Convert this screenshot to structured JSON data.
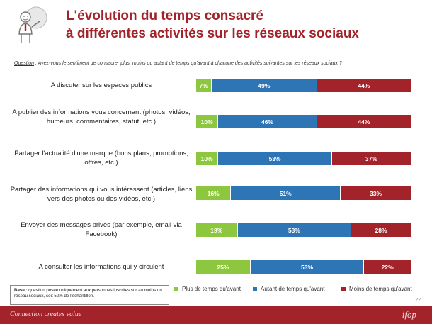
{
  "header": {
    "title_line1": "L'évolution du temps consacré",
    "title_line2": "à différentes activités sur les réseaux sociaux"
  },
  "question": {
    "label": "Question",
    "text": " : Avez-vous le sentiment de consacrer plus, moins ou autant de temps qu'avant à chacune des activités suivantes sur les réseaux sociaux ?"
  },
  "base_note": {
    "label": "Base :",
    "text": " question posée uniquement aux personnes inscrites sur au moins un réseau sociaux, soit 50% de l'échantillon."
  },
  "page_number": "22",
  "footer": {
    "text": "Connection creates value",
    "logo": "ifop"
  },
  "colors": {
    "plus": "#8dc63f",
    "autant": "#2e75b6",
    "moins": "#a3232b",
    "brand": "#a3232b"
  },
  "chart_data": {
    "type": "bar",
    "orientation": "horizontal",
    "stacked": true,
    "categories": [
      "A discuter sur les espaces publics",
      "A publier des informations vous concernant (photos, vidéos, humeurs, commentaires, statut, etc.)",
      "Partager l'actualité d'une marque (bons plans, promotions, offres, etc.)",
      "Partager des informations qui vous intéressent (articles, liens vers des photos ou des vidéos, etc.)",
      "Envoyer des messages privés (par exemple, email via Facebook)",
      "A consulter les informations qui y circulent"
    ],
    "series": [
      {
        "name": "Plus de temps qu'avant",
        "values": [
          7,
          10,
          10,
          16,
          19,
          25
        ],
        "color": "#8dc63f"
      },
      {
        "name": "Autant de temps qu'avant",
        "values": [
          49,
          46,
          53,
          51,
          53,
          53
        ],
        "color": "#2e75b6"
      },
      {
        "name": "Moins de temps qu'avant",
        "values": [
          44,
          44,
          37,
          33,
          28,
          22
        ],
        "color": "#a3232b"
      }
    ],
    "value_suffix": "%",
    "legend_position": "bottom-right",
    "grid": false
  }
}
